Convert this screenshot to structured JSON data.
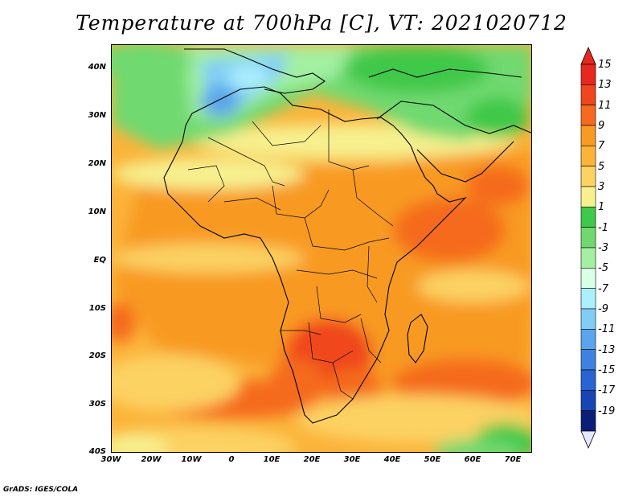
{
  "title": "Temperature at 700hPa [C], VT: 2021020712",
  "footer": "GrADS: IGES/COLA",
  "map": {
    "projection": "lat-lon",
    "lon_range": [
      -30,
      75
    ],
    "lat_range": [
      -40,
      45
    ],
    "lat_ticks": [
      "40N",
      "30N",
      "20N",
      "10N",
      "EQ",
      "10S",
      "20S",
      "30S",
      "40S"
    ],
    "lon_ticks": [
      "30W",
      "20W",
      "10W",
      "0",
      "10E",
      "20E",
      "30E",
      "40E",
      "50E",
      "60E",
      "70E"
    ],
    "field": "Temperature at 700hPa",
    "units": "C"
  },
  "colorbar": {
    "labels": [
      "15",
      "13",
      "11",
      "9",
      "7",
      "5",
      "3",
      "1",
      "-1",
      "-3",
      "-5",
      "-7",
      "-9",
      "-11",
      "-13",
      "-15",
      "-17",
      "-19"
    ],
    "colors": [
      "#e6281e",
      "#f0461e",
      "#f56a1e",
      "#f89a23",
      "#fbb33a",
      "#fcd263",
      "#f7f08f",
      "#3fc84a",
      "#6fd96f",
      "#a3f0a3",
      "#d9ffe6",
      "#aaf0ff",
      "#82cdf5",
      "#5aa5eb",
      "#3c82e1",
      "#2864d2",
      "#1446b4",
      "#0a1e78"
    ],
    "top_arrow_color": "#e6281e",
    "bottom_arrow_color": "#e6e6ff"
  }
}
